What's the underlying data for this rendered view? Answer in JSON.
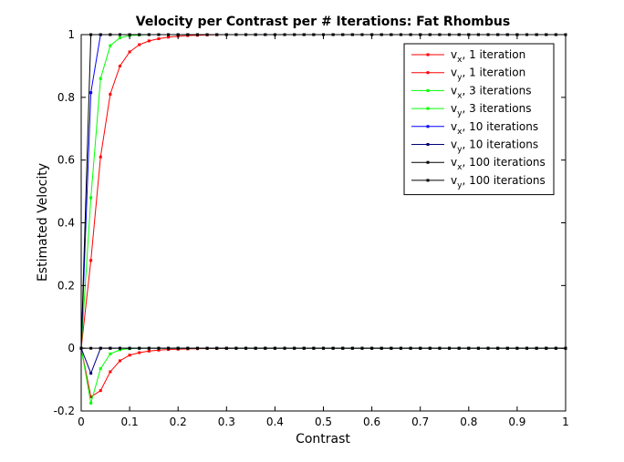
{
  "chart_data": {
    "type": "line",
    "title": "Velocity per Contrast per # Iterations: Fat Rhombus",
    "xlabel": "Contrast",
    "ylabel": "Estimated Velocity",
    "xlim": [
      0,
      1
    ],
    "ylim": [
      -0.2,
      1
    ],
    "xticks": [
      "0",
      "0.1",
      "0.2",
      "0.3",
      "0.4",
      "0.5",
      "0.6",
      "0.7",
      "0.8",
      "0.9",
      "1"
    ],
    "yticks": [
      "-0.2",
      "0",
      "0.2",
      "0.4",
      "0.6",
      "0.8",
      "1"
    ],
    "grid": false,
    "legend_position": "top-right",
    "x": [
      0,
      0.02,
      0.04,
      0.06,
      0.08,
      0.1,
      0.12,
      0.14,
      0.16,
      0.18,
      0.2,
      0.22,
      0.24,
      0.26,
      0.28,
      0.3,
      0.32,
      0.34,
      0.36,
      0.38,
      0.4,
      0.42,
      0.44,
      0.46,
      0.48,
      0.5,
      0.52,
      0.54,
      0.56,
      0.58,
      0.6,
      0.62,
      0.64,
      0.66,
      0.68,
      0.7,
      0.72,
      0.74,
      0.76,
      0.78,
      0.8,
      0.82,
      0.84,
      0.86,
      0.88,
      0.9,
      0.92,
      0.94,
      0.96,
      0.98,
      1.0
    ],
    "series": [
      {
        "label_main": "v",
        "label_sub": "x",
        "label_rest": ", 1 iteration",
        "color": "#ff0000",
        "values": [
          0,
          0.28,
          0.61,
          0.81,
          0.9,
          0.945,
          0.968,
          0.98,
          0.987,
          0.992,
          0.995,
          0.997,
          0.998,
          0.999,
          0.9995,
          1,
          1,
          1,
          1,
          1,
          1,
          1,
          1,
          1,
          1,
          1,
          1,
          1,
          1,
          1,
          1,
          1,
          1,
          1,
          1,
          1,
          1,
          1,
          1,
          1,
          1,
          1,
          1,
          1,
          1,
          1,
          1,
          1,
          1,
          1,
          1
        ]
      },
      {
        "label_main": "v",
        "label_sub": "y",
        "label_rest": ", 1 iteration",
        "color": "#ff0000",
        "values": [
          0,
          -0.155,
          -0.135,
          -0.075,
          -0.04,
          -0.022,
          -0.014,
          -0.009,
          -0.006,
          -0.004,
          -0.003,
          -0.002,
          -0.0015,
          -0.001,
          -0.0007,
          -0.0005,
          0,
          0,
          0,
          0,
          0,
          0,
          0,
          0,
          0,
          0,
          0,
          0,
          0,
          0,
          0,
          0,
          0,
          0,
          0,
          0,
          0,
          0,
          0,
          0,
          0,
          0,
          0,
          0,
          0,
          0,
          0,
          0,
          0,
          0,
          0
        ]
      },
      {
        "label_main": "v",
        "label_sub": "x",
        "label_rest": ", 3 iterations",
        "color": "#00ff00",
        "values": [
          0,
          0.48,
          0.86,
          0.965,
          0.99,
          0.997,
          0.999,
          1,
          1,
          1,
          1,
          1,
          1,
          1,
          1,
          1,
          1,
          1,
          1,
          1,
          1,
          1,
          1,
          1,
          1,
          1,
          1,
          1,
          1,
          1,
          1,
          1,
          1,
          1,
          1,
          1,
          1,
          1,
          1,
          1,
          1,
          1,
          1,
          1,
          1,
          1,
          1,
          1,
          1,
          1,
          1
        ]
      },
      {
        "label_main": "v",
        "label_sub": "y",
        "label_rest": ", 3 iterations",
        "color": "#00ff00",
        "values": [
          0,
          -0.175,
          -0.065,
          -0.018,
          -0.005,
          -0.0015,
          0,
          0,
          0,
          0,
          0,
          0,
          0,
          0,
          0,
          0,
          0,
          0,
          0,
          0,
          0,
          0,
          0,
          0,
          0,
          0,
          0,
          0,
          0,
          0,
          0,
          0,
          0,
          0,
          0,
          0,
          0,
          0,
          0,
          0,
          0,
          0,
          0,
          0,
          0,
          0,
          0,
          0,
          0,
          0,
          0
        ]
      },
      {
        "label_main": "v",
        "label_sub": "x",
        "label_rest": ", 10 iterations",
        "color": "#0000ff",
        "values": [
          0,
          0.815,
          1,
          1,
          1,
          1,
          1,
          1,
          1,
          1,
          1,
          1,
          1,
          1,
          1,
          1,
          1,
          1,
          1,
          1,
          1,
          1,
          1,
          1,
          1,
          1,
          1,
          1,
          1,
          1,
          1,
          1,
          1,
          1,
          1,
          1,
          1,
          1,
          1,
          1,
          1,
          1,
          1,
          1,
          1,
          1,
          1,
          1,
          1,
          1,
          1
        ]
      },
      {
        "label_main": "v",
        "label_sub": "y",
        "label_rest": ", 10 iterations",
        "color": "#00007f",
        "values": [
          0,
          -0.08,
          0,
          0,
          0,
          0,
          0,
          0,
          0,
          0,
          0,
          0,
          0,
          0,
          0,
          0,
          0,
          0,
          0,
          0,
          0,
          0,
          0,
          0,
          0,
          0,
          0,
          0,
          0,
          0,
          0,
          0,
          0,
          0,
          0,
          0,
          0,
          0,
          0,
          0,
          0,
          0,
          0,
          0,
          0,
          0,
          0,
          0,
          0,
          0,
          0
        ]
      },
      {
        "label_main": "v",
        "label_sub": "x",
        "label_rest": ", 100 iterations",
        "color": "#000000",
        "values": [
          0,
          1,
          1,
          1,
          1,
          1,
          1,
          1,
          1,
          1,
          1,
          1,
          1,
          1,
          1,
          1,
          1,
          1,
          1,
          1,
          1,
          1,
          1,
          1,
          1,
          1,
          1,
          1,
          1,
          1,
          1,
          1,
          1,
          1,
          1,
          1,
          1,
          1,
          1,
          1,
          1,
          1,
          1,
          1,
          1,
          1,
          1,
          1,
          1,
          1,
          1
        ]
      },
      {
        "label_main": "v",
        "label_sub": "y",
        "label_rest": ", 100 iterations",
        "color": "#000000",
        "values": [
          0,
          0,
          0,
          0,
          0,
          0,
          0,
          0,
          0,
          0,
          0,
          0,
          0,
          0,
          0,
          0,
          0,
          0,
          0,
          0,
          0,
          0,
          0,
          0,
          0,
          0,
          0,
          0,
          0,
          0,
          0,
          0,
          0,
          0,
          0,
          0,
          0,
          0,
          0,
          0,
          0,
          0,
          0,
          0,
          0,
          0,
          0,
          0,
          0,
          0,
          0
        ]
      }
    ]
  }
}
